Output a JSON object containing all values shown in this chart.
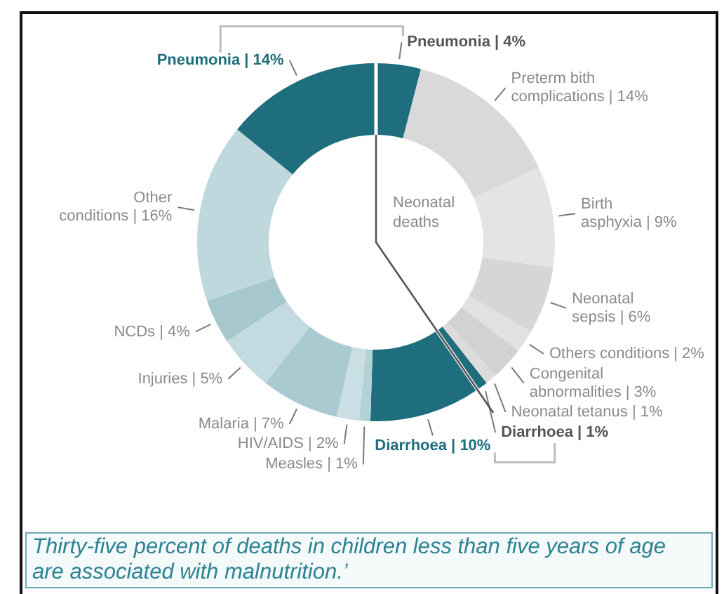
{
  "chart_data": {
    "type": "donut",
    "categories": [
      "Pneumonia | 4%",
      "Preterm bith complications | 14%",
      "Birth asphyxia | 9%",
      "Neonatal sepsis | 6%",
      "Others conditions | 2%",
      "Congenital abnormalities | 3%",
      "Neonatal tetanus | 1%",
      "Diarrhoea | 1%",
      "Diarrhoea | 10%",
      "Measles | 1%",
      "HIV/AIDS | 2%",
      "Malaria | 7%",
      "Injuries | 5%",
      "NCDs | 4%",
      "Other conditions | 16%",
      "Pneumonia | 14%"
    ],
    "values": [
      4,
      14,
      9,
      6,
      2,
      3,
      1,
      1,
      10,
      1,
      2,
      7,
      5,
      4,
      16,
      14
    ],
    "colors": [
      "#1f6e7d",
      "#d9d9d9",
      "#e4e4e4",
      "#d6d6d6",
      "#e1e1e1",
      "#d2d2d2",
      "#dcdcdc",
      "#1f6e7d",
      "#1f6e7d",
      "#b4d1d7",
      "#c9dfe3",
      "#a9cad1",
      "#c3dbe0",
      "#a6c7ce",
      "#bed8dd",
      "#1f6e7d"
    ],
    "annotations": [
      "Neonatal deaths",
      "Thirty-five percent of deaths in children less than five years of age are associated with malnutrition.’"
    ]
  }
}
